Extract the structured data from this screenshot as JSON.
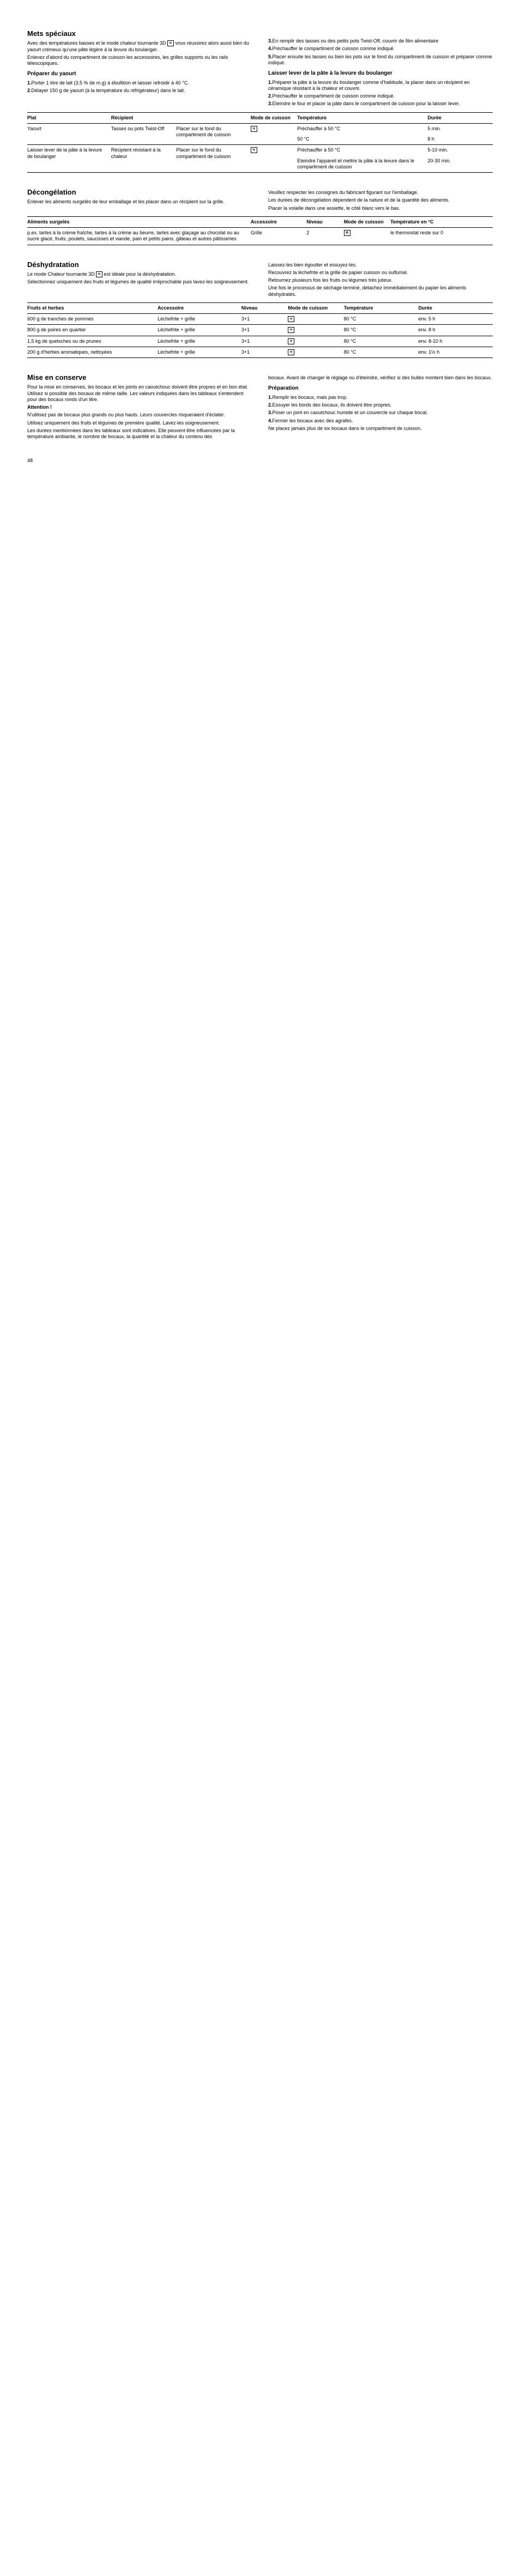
{
  "metsSpeciaux": {
    "title": "Mets spéciaux",
    "left": {
      "intro1": "Avec des températures basses et le mode chaleur tournante 3D ",
      "intro2": " vous réussirez alors aussi bien du yaourt crémeux qu'une pâte légère à la levure du boulanger.",
      "intro3": "Enlevez d'abord du compartiment de cuisson les accessoires, les grilles supports ou les rails télescopiques.",
      "h3_yaourt": "Préparer du yaourt",
      "y1": "Porter 1 litre de lait (3,5 % de m.g) à ébullition et laisser refroidir à 40 °C.",
      "y2": "Délayer 150 g de yaourt (à la température du réfrigérateur) dans le lait."
    },
    "right": {
      "y3": "En remplir des tasses ou des petits pots Twist-Off, couvrir de film alimentaire",
      "y4": "Préchauffer le compartiment de cuisson comme indiqué.",
      "y5": "Placer ensuite les tasses ou bien les pots sur le fond du compartiment de cuisson et préparer comme indiqué.",
      "h3_pate": "Laisser lever de la pâte à la levure du boulanger",
      "p1": "Préparer la pâte à la levure du boulanger comme d'habitude, la placer dans un récipient en céramique résistant à la chaleur et couvrir.",
      "p2": "Préchauffer le compartiment de cuisson comme indiqué.",
      "p3": "Eteindre le four et placer la pâte dans le compartiment de cuisson pour la laisser lever."
    },
    "table": {
      "headers": [
        "Plat",
        "Récipient",
        "",
        "Mode de cuisson",
        "Température",
        "Durée"
      ],
      "rows": [
        {
          "plat": "Yaourt",
          "recip": "Tasses ou pots Twist-Off",
          "placer": "Placer sur le fond du compartiment de cuisson",
          "icon": "≋",
          "temp1": "Préchauffer à 50 °C",
          "dur1": "5 min.",
          "temp2": "50 °C",
          "dur2": "8 h"
        },
        {
          "plat": "Laisser lever de la pâte à la levure de boulanger",
          "recip": "Récipient résistant à la chaleur",
          "placer": "Placer sur le fond du compartiment de cuisson",
          "icon": "≋",
          "temp1": "Préchauffer à 50 °C",
          "dur1": "5-10 min.",
          "temp2": "Eteindre l'appareil et mettre la pâte à la levure dans le compartiment de cuisson",
          "dur2": "20-30 min."
        }
      ]
    }
  },
  "decongelation": {
    "title": "Décongélation",
    "left": "Enlever les aliments surgelés de leur emballage et les placer dans un récipient sur la grille.",
    "right1": "Veuillez respecter les consignes du fabricant figurant sur l'emballage.",
    "right2": "Les durées de décongélation dépendent de la nature et de la quantité des aliments.",
    "right3": "Placer la volaille dans une assiette, le côté blanc vers le bas.",
    "table": {
      "headers": [
        "Aliments surgelés",
        "Accessoire",
        "Niveau",
        "Mode de cuisson",
        "Température en °C"
      ],
      "row": {
        "aliments": "p.ex. tartes à la crème fraîche, tartes à la crème au beurre, tartes avec glaçage au chocolat ou au sucre glacé, fruits, poulets, saucisses et viande, pain et petits pains, gâteau et autres pâtisseries",
        "acc": "Grille",
        "niv": "2",
        "icon": "✻",
        "temp": "le thermostat reste sur 0"
      }
    }
  },
  "deshydratation": {
    "title": "Déshydratation",
    "left1_a": "Le mode Chaleur tournante 3D ",
    "left1_b": " est idéale pour la déshydratation.",
    "left2": "Sélectionnez uniquement des fruits et légumes de qualité irréprochable puis lavez-les soigneusement.",
    "right1": "Laissez-les bien égoutter et essuyez-les.",
    "right2": "Recouvrez la lèchefrite et la grille de papier cuisson ou sulfurisé.",
    "right3": "Retournez plusieurs fois les fruits ou légumes très juteux.",
    "right4": "Une fois le processus de séchage terminé, détachez immédiatement du papier les aliments déshydratés.",
    "table": {
      "headers": [
        "Fruits et herbes",
        "Accessoire",
        "Niveau",
        "Mode de cuisson",
        "Température",
        "Durée"
      ],
      "rows": [
        [
          "600 g de tranches de pommes",
          "Lèchefrite + grille",
          "3+1",
          "≋",
          "80 °C",
          "env. 5 h"
        ],
        [
          "800 g de poires en quartier",
          "Lèchefrite + grille",
          "3+1",
          "≋",
          "80 °C",
          "env. 8 h"
        ],
        [
          "1,5 kg de quetsches ou de prunes",
          "Lèchefrite + grille",
          "3+1",
          "≋",
          "80 °C",
          "env. 8-10 h"
        ],
        [
          "200 g d'herbes aromatiques, nettoyées",
          "Lèchefrite + grille",
          "3+1",
          "≋",
          "80 °C",
          "env. 1½ h"
        ]
      ]
    }
  },
  "mise": {
    "title": "Mise en conserve",
    "left1": "Pour la mise en conserves, les bocaux et les joints en caoutchouc doivent être propres et en bon état. Utilisez si possible des bocaux de même taille. Les valeurs indiquées dans les tableaux s'entendent pour des bocaux ronds d'un litre.",
    "att_label": "Attention !",
    "left2": "N'utilisez pas de bocaux plus grands ou plus hauts. Leurs couvercles risqueraient d'éclater.",
    "left3": "Utilisez uniquement des fruits et légumes de première qualité. Lavez-les soigneusement.",
    "left4": "Les durées mentionnées dans les tableaux sont indicatives. Elle peuvent être influencées par la température ambiante, le nombre de bocaux, la quantité et la chaleur du contenu des",
    "right_intro": "bocaux. Avant de changer le réglage ou d'éteindre, vérifiez si des bulles montent bien dans les bocaux.",
    "h3_prep": "Préparation",
    "p1": "Remplir les bocaux, mais pas trop.",
    "p2": "Essuyer les bords des bocaux, ils doivent être propres.",
    "p3": "Poser un joint en caoutchouc humide et un couvercle sur chaque bocal.",
    "p4": "Fermer les bocaux avec des agrafes.",
    "p5": "Ne placez jamais plus de six bocaux dans le compartiment de cuisson."
  },
  "page": "48"
}
